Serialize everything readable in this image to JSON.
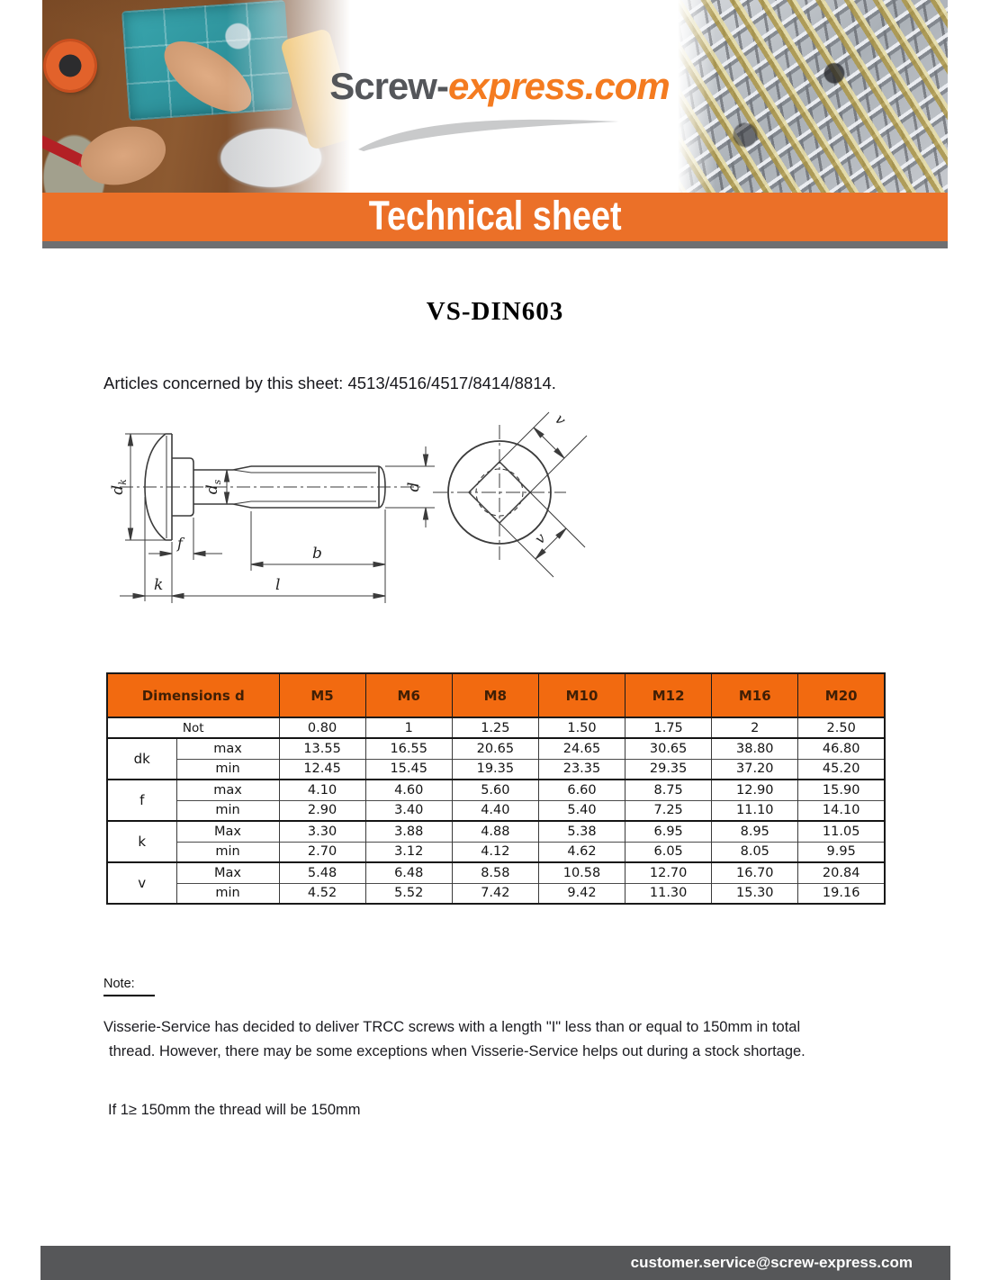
{
  "header": {
    "logo": {
      "part1": "Screw-",
      "part2": "express.com"
    },
    "banner_title": "Technical sheet"
  },
  "document": {
    "title": "VS-DIN603",
    "articles_line": "Articles concerned by this sheet: 4513/4516/4517/8414/8814."
  },
  "drawing": {
    "labels": {
      "d_main": "d",
      "dk_sub": "k",
      "ds_sub": "s",
      "d": "d",
      "f": "f",
      "b": "b",
      "k": "k",
      "l": "l",
      "v": "v"
    }
  },
  "table": {
    "header": {
      "dimensions_label": "Dimensions d",
      "sizes": [
        "M5",
        "M6",
        "M8",
        "M10",
        "M12",
        "M16",
        "M20"
      ]
    },
    "pitch_row": {
      "label": "Not",
      "values": [
        "0.80",
        "1",
        "1.25",
        "1.50",
        "1.75",
        "2",
        "2.50"
      ]
    },
    "groups": [
      {
        "label": "dk",
        "rows": [
          {
            "sub": "max",
            "values": [
              "13.55",
              "16.55",
              "20.65",
              "24.65",
              "30.65",
              "38.80",
              "46.80"
            ]
          },
          {
            "sub": "min",
            "values": [
              "12.45",
              "15.45",
              "19.35",
              "23.35",
              "29.35",
              "37.20",
              "45.20"
            ]
          }
        ]
      },
      {
        "label": "f",
        "rows": [
          {
            "sub": "max",
            "values": [
              "4.10",
              "4.60",
              "5.60",
              "6.60",
              "8.75",
              "12.90",
              "15.90"
            ]
          },
          {
            "sub": "min",
            "values": [
              "2.90",
              "3.40",
              "4.40",
              "5.40",
              "7.25",
              "11.10",
              "14.10"
            ]
          }
        ]
      },
      {
        "label": "k",
        "rows": [
          {
            "sub": "Max",
            "values": [
              "3.30",
              "3.88",
              "4.88",
              "5.38",
              "6.95",
              "8.95",
              "11.05"
            ]
          },
          {
            "sub": "min",
            "values": [
              "2.70",
              "3.12",
              "4.12",
              "4.62",
              "6.05",
              "8.05",
              "9.95"
            ]
          }
        ]
      },
      {
        "label": "v",
        "rows": [
          {
            "sub": "Max",
            "values": [
              "5.48",
              "6.48",
              "8.58",
              "10.58",
              "12.70",
              "16.70",
              "20.84"
            ]
          },
          {
            "sub": "min",
            "values": [
              "4.52",
              "5.52",
              "7.42",
              "9.42",
              "11.30",
              "15.30",
              "19.16"
            ]
          }
        ]
      }
    ]
  },
  "note": {
    "heading": "Note:",
    "lines": [
      "Visserie-Service has decided to deliver TRCC screws with a length \"I\" less than or equal to 150mm in total",
      "thread. However, there may be some exceptions when Visserie-Service helps out during a stock shortage."
    ],
    "extra": "If 1≥ 150mm the thread will be 150mm"
  },
  "footer": {
    "email": "customer.service@screw-express.com"
  },
  "colors": {
    "banner_orange": "#eb7028",
    "table_header_orange": "#f26a10",
    "logo_gray": "#54565a",
    "logo_orange": "#f47b20",
    "banner_underline_gray": "#6e6f71",
    "footer_gray": "#565759"
  }
}
